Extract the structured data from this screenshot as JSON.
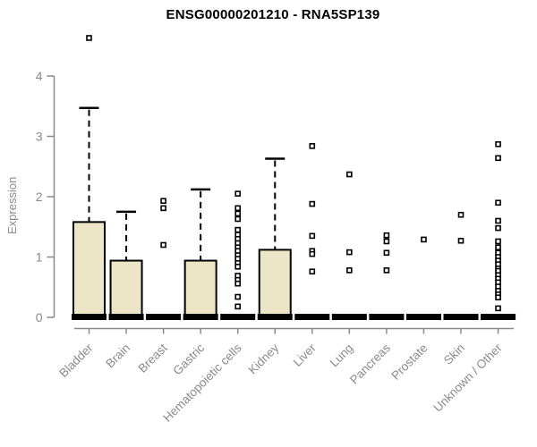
{
  "chart_data": {
    "type": "box",
    "title": "ENSG00000201210 - RNA5SP139",
    "ylabel": "Expression",
    "xlabel": "",
    "ylim": [
      0,
      4
    ],
    "yticks": [
      0,
      1,
      2,
      3,
      4
    ],
    "grid": false,
    "legend": "none",
    "marker": "open-square",
    "categories": [
      "Bladder",
      "Brain",
      "Breast",
      "Gastric",
      "Hematopoietic cells",
      "Kidney",
      "Liver",
      "Lung",
      "Pancreas",
      "Prostate",
      "Skin",
      "Unknown / Other"
    ],
    "boxes": [
      {
        "category": "Bladder",
        "median": 0,
        "q1": 0,
        "q3": 1.58,
        "whisker_low": 0,
        "whisker_high": 3.47,
        "outliers": [
          4.63
        ]
      },
      {
        "category": "Brain",
        "median": 0,
        "q1": 0,
        "q3": 0.94,
        "whisker_low": 0,
        "whisker_high": 1.75,
        "outliers": []
      },
      {
        "category": "Breast",
        "median": 0,
        "q1": 0,
        "q3": 0,
        "whisker_low": 0,
        "whisker_high": 0,
        "outliers": [
          1.93,
          1.81,
          1.2
        ]
      },
      {
        "category": "Gastric",
        "median": 0,
        "q1": 0,
        "q3": 0.94,
        "whisker_low": 0,
        "whisker_high": 2.12,
        "outliers": []
      },
      {
        "category": "Hematopoietic cells",
        "median": 0,
        "q1": 0,
        "q3": 0,
        "whisker_low": 0,
        "whisker_high": 0,
        "outliers": [
          2.05,
          1.81,
          1.72,
          1.63,
          1.45,
          1.37,
          1.3,
          1.23,
          1.16,
          1.1,
          1.03,
          0.97,
          0.9,
          0.84,
          0.69,
          0.62,
          0.56,
          0.34,
          0.18
        ]
      },
      {
        "category": "Kidney",
        "median": 0,
        "q1": 0,
        "q3": 1.12,
        "whisker_low": 0,
        "whisker_high": 2.63,
        "outliers": []
      },
      {
        "category": "Liver",
        "median": 0,
        "q1": 0,
        "q3": 0,
        "whisker_low": 0,
        "whisker_high": 0,
        "outliers": [
          2.84,
          1.88,
          1.35,
          1.1,
          1.05,
          0.76
        ]
      },
      {
        "category": "Lung",
        "median": 0,
        "q1": 0,
        "q3": 0,
        "whisker_low": 0,
        "whisker_high": 0,
        "outliers": [
          2.37,
          1.08,
          0.78
        ]
      },
      {
        "category": "Pancreas",
        "median": 0,
        "q1": 0,
        "q3": 0,
        "whisker_low": 0,
        "whisker_high": 0,
        "outliers": [
          1.36,
          1.26,
          1.07,
          0.78
        ]
      },
      {
        "category": "Prostate",
        "median": 0,
        "q1": 0,
        "q3": 0,
        "whisker_low": 0,
        "whisker_high": 0,
        "outliers": [
          1.29
        ]
      },
      {
        "category": "Skin",
        "median": 0,
        "q1": 0,
        "q3": 0,
        "whisker_low": 0,
        "whisker_high": 0,
        "outliers": [
          1.7,
          1.27
        ]
      },
      {
        "category": "Unknown / Other",
        "median": 0,
        "q1": 0,
        "q3": 0,
        "whisker_low": 0,
        "whisker_high": 0,
        "outliers": [
          2.87,
          2.64,
          1.9,
          1.6,
          1.48,
          1.26,
          1.16,
          1.07,
          1.0,
          0.94,
          0.88,
          0.81,
          0.77,
          0.7,
          0.64,
          0.58,
          0.51,
          0.44,
          0.38,
          0.33,
          0.15
        ]
      }
    ],
    "colors": {
      "box_fill": "#EDE6C6",
      "box_border": "#000000",
      "median": "#000000",
      "axis": "#8a8a8a",
      "tick_label": "#8a8a8a",
      "title": "#000000",
      "outlier": "#000000",
      "background": "#ffffff"
    }
  }
}
